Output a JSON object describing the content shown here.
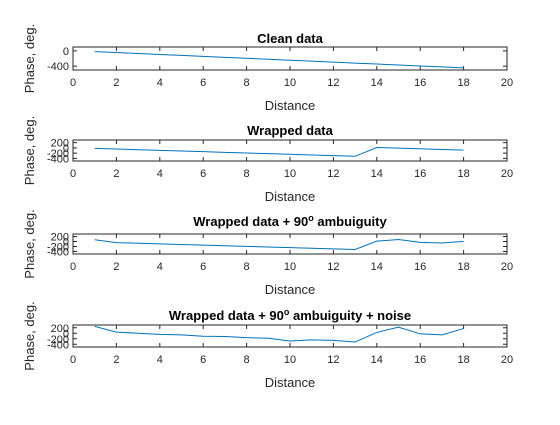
{
  "chart_data": [
    {
      "type": "line",
      "title": "Clean data",
      "xlabel": "Distance",
      "ylabel": "Phase, deg.",
      "xlim": [
        0,
        20
      ],
      "ylim": [
        -500,
        100
      ],
      "xticks": [
        0,
        2,
        4,
        6,
        8,
        10,
        12,
        14,
        16,
        18,
        20
      ],
      "yticks": [
        -400,
        0
      ],
      "yticklabels": [
        "-400",
        "0"
      ],
      "series": [
        {
          "x": [
            1,
            2,
            3,
            4,
            5,
            6,
            7,
            8,
            9,
            10,
            11,
            12,
            13,
            14,
            15,
            16,
            17,
            18
          ],
          "y": [
            -20,
            -45,
            -70,
            -95,
            -120,
            -145,
            -170,
            -195,
            -220,
            -245,
            -270,
            -295,
            -320,
            -345,
            -370,
            -395,
            -420,
            -445
          ]
        }
      ],
      "color": "#0072bd"
    },
    {
      "type": "line",
      "title": "Wrapped data",
      "xlabel": "Distance",
      "ylabel": "Phase, deg.",
      "xlim": [
        0,
        20
      ],
      "ylim": [
        -500,
        300
      ],
      "xticks": [
        0,
        2,
        4,
        6,
        8,
        10,
        12,
        14,
        16,
        18,
        20
      ],
      "yticks": [
        -400,
        -200,
        0,
        200
      ],
      "yticklabels": [
        "-400",
        "-200",
        "0",
        "200"
      ],
      "series": [
        {
          "x": [
            1,
            2,
            3,
            4,
            5,
            6,
            7,
            8,
            9,
            10,
            11,
            12,
            13,
            14,
            15,
            16,
            17,
            18
          ],
          "y": [
            -20,
            -45,
            -70,
            -95,
            -120,
            -145,
            -170,
            -195,
            -220,
            -245,
            -270,
            -295,
            -320,
            15,
            -10,
            -35,
            -60,
            -85
          ]
        }
      ],
      "color": "#0072bd"
    },
    {
      "type": "line",
      "title": "Wrapped data + 90",
      "title_sup": "o",
      "title_rest": " ambuiguity",
      "xlabel": "Distance",
      "ylabel": "Phase, deg.",
      "xlim": [
        0,
        20
      ],
      "ylim": [
        -500,
        300
      ],
      "xticks": [
        0,
        2,
        4,
        6,
        8,
        10,
        12,
        14,
        16,
        18,
        20
      ],
      "yticks": [
        -400,
        -200,
        0,
        200
      ],
      "yticklabels": [
        "-400",
        "-200",
        "0",
        "200"
      ],
      "series": [
        {
          "x": [
            1,
            2,
            3,
            4,
            5,
            6,
            7,
            8,
            9,
            10,
            11,
            12,
            13,
            14,
            15,
            16,
            17,
            18
          ],
          "y": [
            70,
            -45,
            -70,
            -95,
            -120,
            -145,
            -170,
            -195,
            -220,
            -245,
            -270,
            -295,
            -320,
            15,
            80,
            -35,
            -60,
            5
          ]
        }
      ],
      "color": "#0072bd"
    },
    {
      "type": "line",
      "title": "Wrapped data + 90",
      "title_sup": "o",
      "title_rest": " ambuiguity + noise",
      "xlabel": "Distance",
      "ylabel": "Phase, deg.",
      "xlim": [
        0,
        20
      ],
      "ylim": [
        -500,
        300
      ],
      "xticks": [
        0,
        2,
        4,
        6,
        8,
        10,
        12,
        14,
        16,
        18,
        20
      ],
      "yticks": [
        -400,
        -200,
        0,
        200
      ],
      "yticklabels": [
        "-400",
        "-200",
        "0",
        "200"
      ],
      "series": [
        {
          "x": [
            1,
            2,
            3,
            4,
            5,
            6,
            7,
            8,
            9,
            10,
            11,
            12,
            13,
            14,
            15,
            16,
            17,
            18
          ],
          "y": [
            250,
            40,
            0,
            -40,
            -60,
            -110,
            -120,
            -160,
            -180,
            -280,
            -240,
            -260,
            -320,
            30,
            220,
            -20,
            -60,
            170
          ]
        }
      ],
      "color": "#0072bd"
    }
  ]
}
